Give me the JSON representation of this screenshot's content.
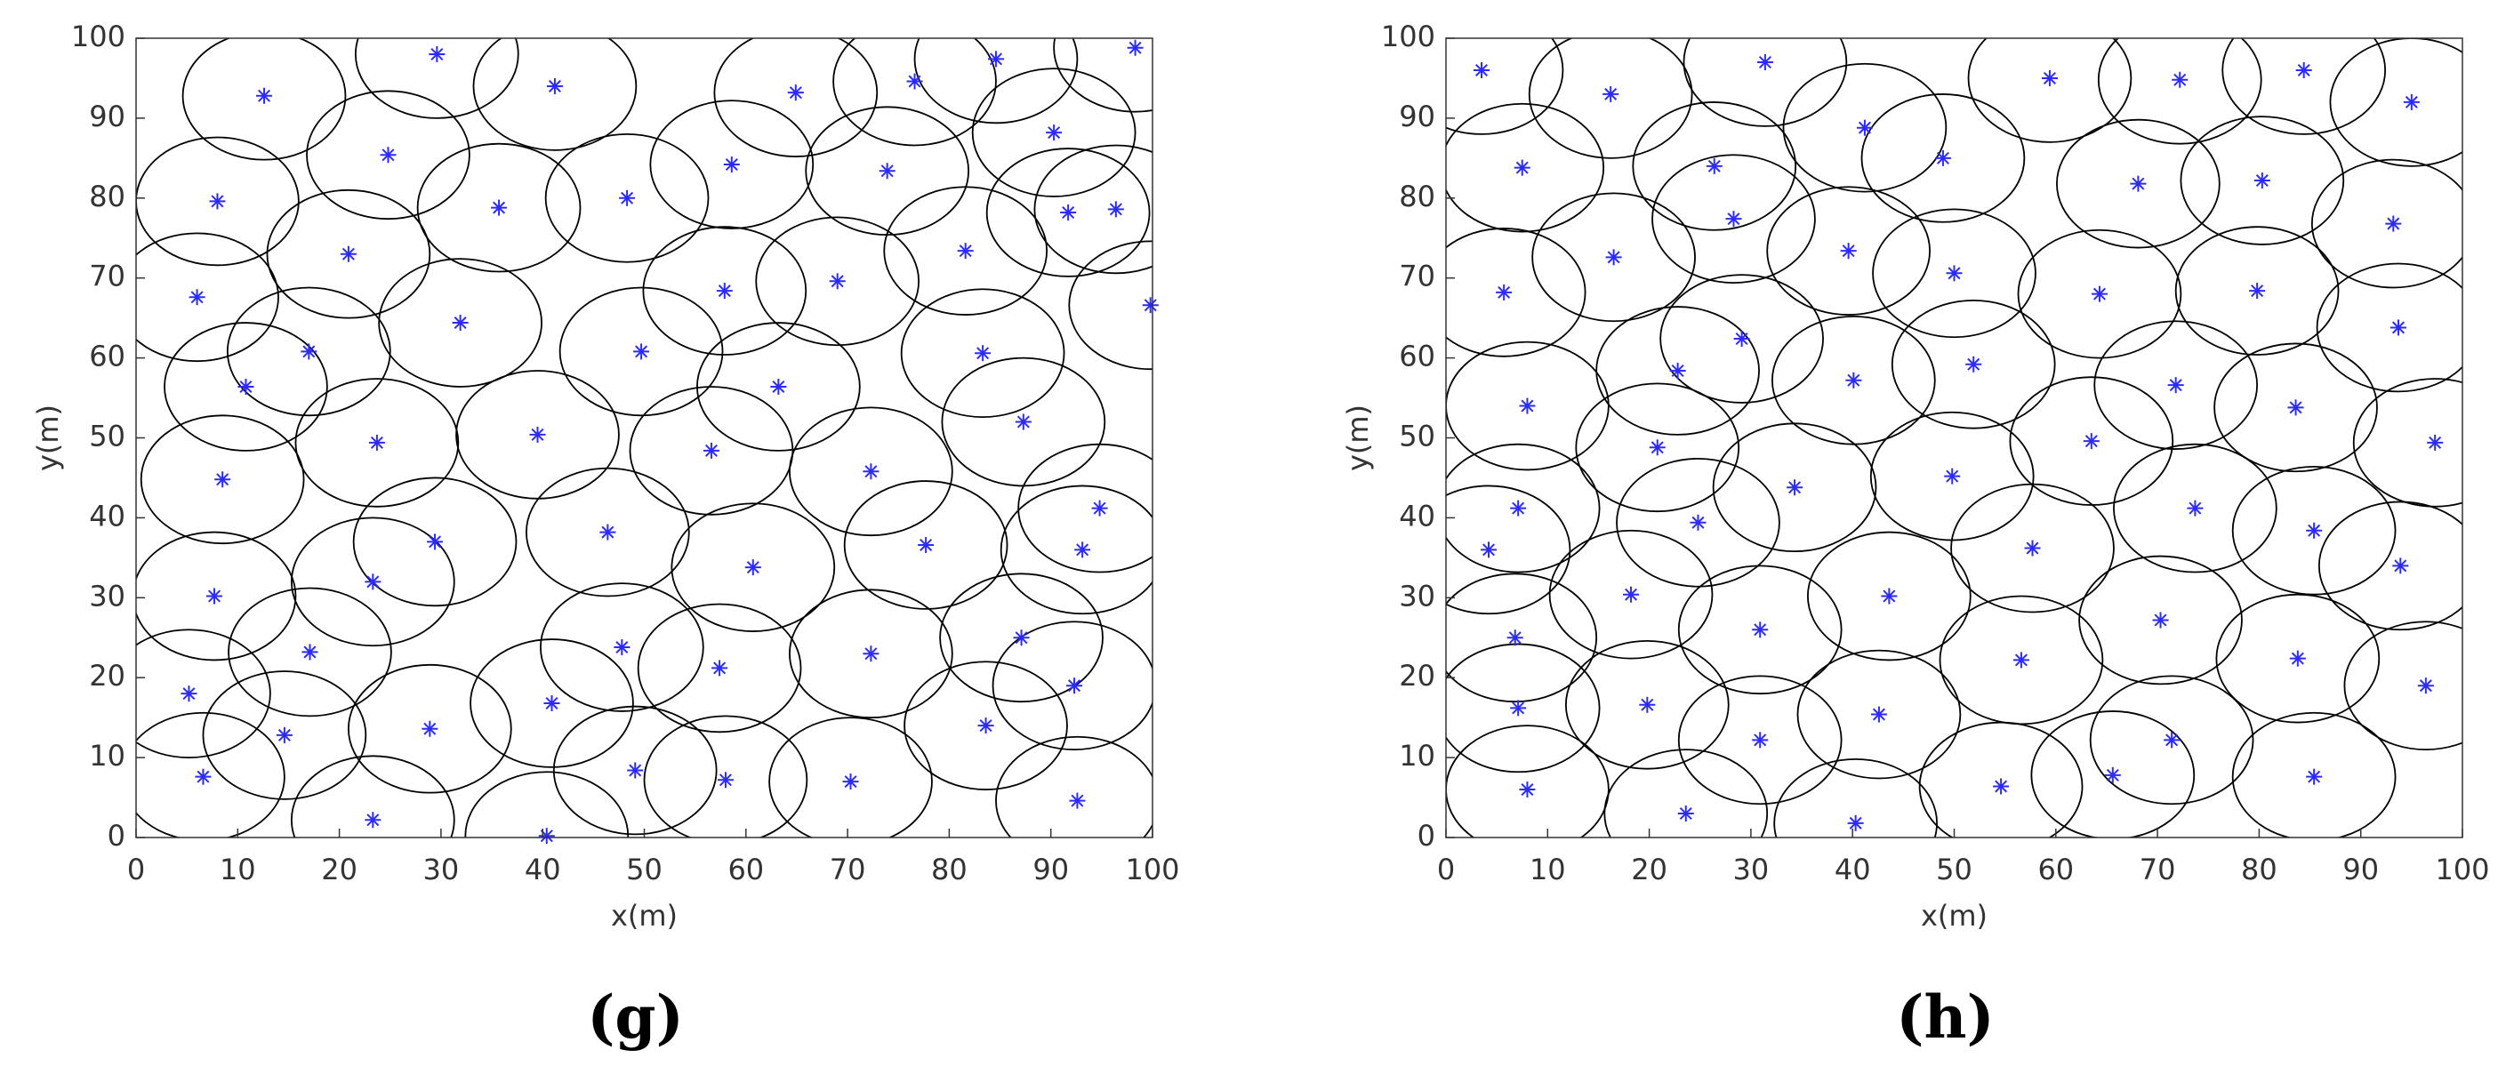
{
  "chart_data": [
    {
      "type": "scatter",
      "caption": "(g)",
      "xlabel": "x(m)",
      "ylabel": "y(m)",
      "color": "#2b2bff",
      "ring_color": "#000000",
      "xlim": [
        0,
        100
      ],
      "ylim": [
        0,
        100
      ],
      "xticks": [
        0,
        10,
        20,
        30,
        40,
        50,
        60,
        70,
        80,
        90,
        100
      ],
      "yticks": [
        0,
        10,
        20,
        30,
        40,
        50,
        60,
        70,
        80,
        90,
        100
      ],
      "x": [
        12.6,
        29.6,
        41.2,
        64.9,
        76.6,
        84.6,
        98.3,
        24.8,
        8,
        35.7,
        48.3,
        58.6,
        73.9,
        90.3,
        91.7,
        96.4,
        20.9,
        81.6,
        6,
        31.9,
        57.9,
        69,
        99.8,
        17,
        49.7,
        83.3,
        10.8,
        63.2,
        23.7,
        39.5,
        56.6,
        87.3,
        8.5,
        72.3,
        94.8,
        46.4,
        29.4,
        77.7,
        93.1,
        60.7,
        23.3,
        7.7,
        17.1,
        47.8,
        72.3,
        87.1,
        57.4,
        92.3,
        5.2,
        40.9,
        83.6,
        14.6,
        28.9,
        49.1,
        6.6,
        58,
        70.3,
        23.3,
        40.4,
        92.6
      ],
      "values": [
        92.8,
        98,
        94,
        93.2,
        94.6,
        97.4,
        98.8,
        85.4,
        79.6,
        78.8,
        80,
        84.2,
        83.4,
        88.2,
        78.2,
        78.6,
        73,
        73.4,
        67.6,
        64.4,
        68.4,
        69.6,
        66.6,
        60.8,
        60.8,
        60.6,
        56.4,
        56.4,
        49.4,
        50.4,
        48.4,
        52,
        44.8,
        45.8,
        41.2,
        38.2,
        37,
        36.6,
        36,
        33.8,
        32,
        30.2,
        23.2,
        23.8,
        23,
        25,
        21.2,
        19,
        18,
        16.8,
        14,
        12.8,
        13.6,
        8.4,
        7.6,
        7.2,
        7,
        2.2,
        0.2,
        4.6
      ]
    },
    {
      "type": "scatter",
      "caption": "(h)",
      "xlabel": "x(m)",
      "ylabel": "y(m)",
      "color": "#2b2bff",
      "ring_color": "#000000",
      "xlim": [
        0,
        100
      ],
      "ylim": [
        0,
        100
      ],
      "xticks": [
        0,
        10,
        20,
        30,
        40,
        50,
        60,
        70,
        80,
        90,
        100
      ],
      "yticks": [
        0,
        10,
        20,
        30,
        40,
        50,
        60,
        70,
        80,
        90,
        100
      ],
      "x": [
        3.5,
        16.2,
        31.4,
        41.2,
        59.4,
        72.2,
        84.4,
        95,
        7.5,
        26.4,
        28.3,
        48.9,
        68.1,
        80.3,
        93.2,
        16.5,
        39.6,
        50,
        5.7,
        64.3,
        79.8,
        93.7,
        29.1,
        51.9,
        22.8,
        8,
        40.1,
        71.8,
        83.6,
        20.8,
        63.5,
        97.3,
        49.8,
        34.3,
        7.1,
        73.7,
        24.8,
        85.4,
        4.2,
        57.7,
        93.9,
        18.2,
        43.6,
        70.3,
        6.8,
        30.9,
        83.8,
        56.6,
        96.4,
        7.1,
        19.8,
        42.6,
        30.9,
        71.4,
        65.6,
        85.4,
        8,
        54.6,
        23.6,
        40.3
      ],
      "values": [
        96,
        93,
        97,
        88.8,
        95,
        94.8,
        96,
        92,
        83.8,
        84,
        77.4,
        85,
        81.8,
        82.2,
        76.8,
        72.6,
        73.4,
        70.6,
        68.2,
        68,
        68.4,
        63.8,
        62.4,
        59.2,
        58.4,
        54,
        57.2,
        56.6,
        53.8,
        48.8,
        49.6,
        49.4,
        45.2,
        43.8,
        41.2,
        41.2,
        39.4,
        38.4,
        36,
        36.2,
        34,
        30.4,
        30.2,
        27.2,
        25,
        26,
        22.4,
        22.2,
        19,
        16.2,
        16.6,
        15.4,
        12.2,
        12.2,
        7.8,
        7.6,
        6,
        6.4,
        3,
        1.8
      ]
    }
  ]
}
